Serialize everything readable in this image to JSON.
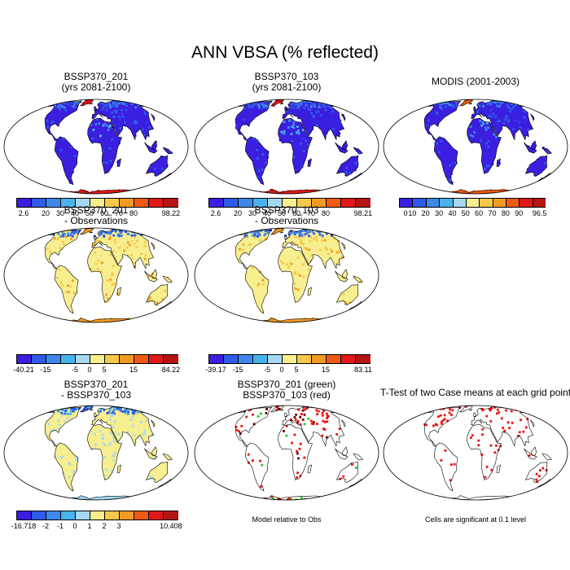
{
  "title": "ANN VBSA (% reflected)",
  "palettes": {
    "abs": [
      "#3a1fe0",
      "#2f5be8",
      "#3f88ea",
      "#49b2ea",
      "#a6d8f2",
      "#f7ee8f",
      "#f5c84a",
      "#f29b23",
      "#ee5a12",
      "#e01818",
      "#b51414"
    ],
    "diff": [
      "#3a1fe0",
      "#2f5be8",
      "#3f88ea",
      "#49b2ea",
      "#a6d8f2",
      "#f7ee8f",
      "#f5c84a",
      "#f29b23",
      "#ee5a12",
      "#e01818",
      "#b51414"
    ]
  },
  "panels": [
    {
      "id": "case1",
      "title_line1": "BSSP370_201",
      "title_line2": "(yrs 2081-2100)",
      "style": "abs",
      "colorbar": {
        "labels": [
          "2.6",
          "20",
          "30",
          "40",
          "50",
          "60",
          "70",
          "80",
          "98.22"
        ],
        "label_boxes": [
          0,
          2,
          3,
          4,
          5,
          6,
          7,
          8,
          10
        ]
      }
    },
    {
      "id": "case2",
      "title_line1": "BSSP370_103",
      "title_line2": "(yrs 2081-2100)",
      "style": "abs",
      "colorbar": {
        "labels": [
          "2.6",
          "20",
          "30",
          "40",
          "50",
          "60",
          "70",
          "80",
          "98.21"
        ],
        "label_boxes": [
          0,
          2,
          3,
          4,
          5,
          6,
          7,
          8,
          10
        ]
      }
    },
    {
      "id": "obs",
      "title_line1": "MODIS (2001-2003)",
      "title_line2": "",
      "style": "obs",
      "colorbar": {
        "labels": [
          "0",
          "10",
          "20",
          "30",
          "40",
          "50",
          "60",
          "70",
          "80",
          "90",
          "96.5"
        ],
        "label_boxes": [
          0,
          1,
          2,
          3,
          4,
          5,
          6,
          7,
          8,
          9,
          10
        ]
      }
    },
    {
      "id": "diff1",
      "title_line1": "BSSP370_201",
      "title_line2": "- Observations",
      "style": "bias",
      "colorbar": {
        "labels": [
          "-40.21",
          "-15",
          "-5",
          "0",
          "5",
          "15",
          "84.22"
        ],
        "label_boxes": [
          0,
          2,
          4,
          5,
          6,
          8,
          10
        ]
      }
    },
    {
      "id": "diff2",
      "title_line1": "BSSP370_103",
      "title_line2": "- Observations",
      "style": "bias",
      "colorbar": {
        "labels": [
          "-39.17",
          "-15",
          "-5",
          "0",
          "5",
          "15",
          "83.11"
        ],
        "label_boxes": [
          0,
          2,
          4,
          5,
          6,
          8,
          10
        ]
      }
    },
    {
      "id": "case_diff",
      "title_line1": "BSSP370_201",
      "title_line2": "- BSSP370_103",
      "style": "diff",
      "colorbar": {
        "labels": [
          "-16.718",
          "-2",
          "-1",
          "0",
          "1",
          "2",
          "3",
          "10.408"
        ],
        "label_boxes": [
          0,
          2,
          3,
          4,
          5,
          6,
          7,
          10
        ]
      }
    },
    {
      "id": "relative",
      "title_line1": "BSSP370_201 (green)",
      "title_line2": "BSSP370_103 (red)",
      "style": "relative",
      "note": "Model relative to Obs"
    },
    {
      "id": "ttest",
      "title_line1": "T-Test of two Case means at each grid point",
      "title_line2": "",
      "style": "ttest",
      "note": "Cells are significant at 0.1 level"
    }
  ]
}
